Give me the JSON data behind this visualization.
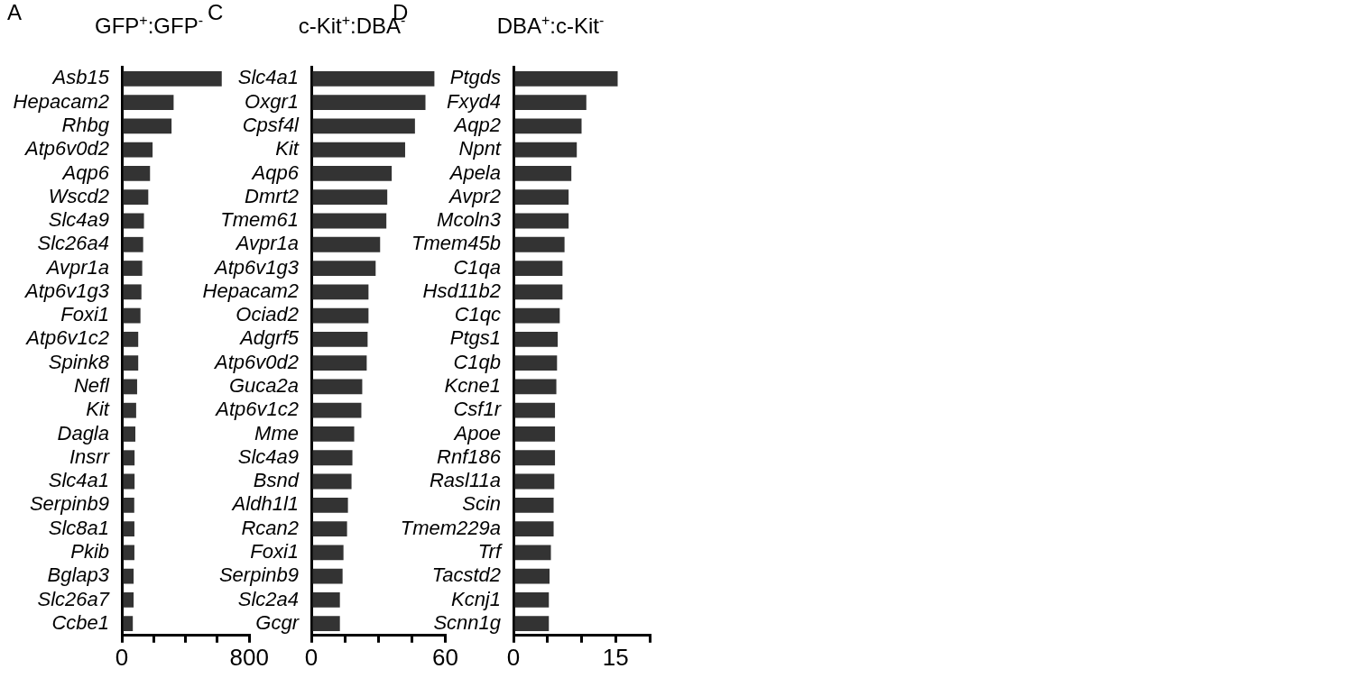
{
  "chart_data": [
    {
      "type": "bar",
      "orientation": "horizontal",
      "title": "GFP$^{+}$:GFP$^{-}$",
      "annotations": [
        "A"
      ],
      "color": "#333333",
      "categories": [
        "Asb15",
        "Hepacam2",
        "Rhbg",
        "Atp6v0d2",
        "Aqp6",
        "Wscd2",
        "Slc4a9",
        "Slc26a4",
        "Avpr1a",
        "Atp6v1g3",
        "Foxi1",
        "Atp6v1c2",
        "Spink8",
        "Nefl",
        "Kit",
        "Dagla",
        "Insrr",
        "Slc4a1",
        "Serpinb9",
        "Slc8a1",
        "Pkib",
        "Bglap3",
        "Slc26a7",
        "Ccbe1"
      ],
      "values": [
        627,
        325,
        312,
        193,
        177,
        166,
        139,
        134,
        128,
        123,
        117,
        103,
        103,
        96,
        90,
        85,
        80,
        80,
        78,
        79,
        79,
        74,
        74,
        69
      ],
      "xlim": [
        0,
        800
      ],
      "xticks": [
        0,
        {
          "value": 200,
          "label": null
        },
        {
          "value": 400,
          "label": null
        },
        {
          "value": 600,
          "label": null
        },
        800
      ]
    },
    {
      "type": "bar",
      "orientation": "horizontal",
      "title": "c-Kit$^{+}$:DBA$^{-}$",
      "annotations": [
        "C"
      ],
      "color": "#333333",
      "categories": [
        "Slc4a1",
        "Oxgr1",
        "Cpsf4l",
        "Kit",
        "Aqp6",
        "Dmrt2",
        "Tmem61",
        "Avpr1a",
        "Atp6v1g3",
        "Hepacam2",
        "Ociad2",
        "Adgrf5",
        "Atp6v0d2",
        "Guca2a",
        "Atp6v1c2",
        "Mme",
        "Slc4a9",
        "Bsnd",
        "Aldh1l1",
        "Rcan2",
        "Foxi1",
        "Serpinb9",
        "Slc2a4",
        "Gcgr"
      ],
      "values": [
        55.1,
        51.1,
        46.4,
        42,
        36,
        34,
        33.6,
        30.8,
        28.8,
        25.6,
        25.6,
        25.2,
        24.8,
        22.8,
        22.4,
        19.2,
        18.4,
        18,
        16.4,
        16,
        14.4,
        14,
        12.8,
        12.8
      ],
      "xlim": [
        0,
        60
      ],
      "xticks": [
        0,
        {
          "value": 15,
          "label": null
        },
        {
          "value": 30,
          "label": null
        },
        {
          "value": 45,
          "label": null
        },
        60
      ]
    },
    {
      "type": "bar",
      "orientation": "horizontal",
      "title": "DBA$^{+}$:c-Kit$^{-}$",
      "annotations": [
        "D"
      ],
      "color": "#333333",
      "categories": [
        "Ptgds",
        "Fxyd4",
        "Aqp2",
        "Npnt",
        "Apela",
        "Avpr2",
        "Mcoln3",
        "Tmem45b",
        "C1qa",
        "Hsd11b2",
        "C1qc",
        "Ptgs1",
        "C1qb",
        "Kcne1",
        "Csf1r",
        "Apoe",
        "Rnf186",
        "Rasl11a",
        "Scin",
        "Tmem229a",
        "Trf",
        "Tacstd2",
        "Kcnj1",
        "Scnn1g"
      ],
      "values": [
        15.3,
        10.7,
        10.0,
        9.3,
        8.5,
        8.1,
        8.1,
        7.5,
        7.2,
        7.2,
        6.8,
        6.5,
        6.4,
        6.3,
        6.1,
        6.1,
        6.1,
        6.0,
        5.9,
        5.9,
        5.5,
        5.3,
        5.2,
        5.2
      ],
      "xlim": [
        0,
        20
      ],
      "xticks": [
        0,
        {
          "value": 5,
          "label": null
        },
        {
          "value": 10,
          "label": null
        },
        15,
        {
          "value": 20,
          "label": null
        }
      ]
    }
  ]
}
